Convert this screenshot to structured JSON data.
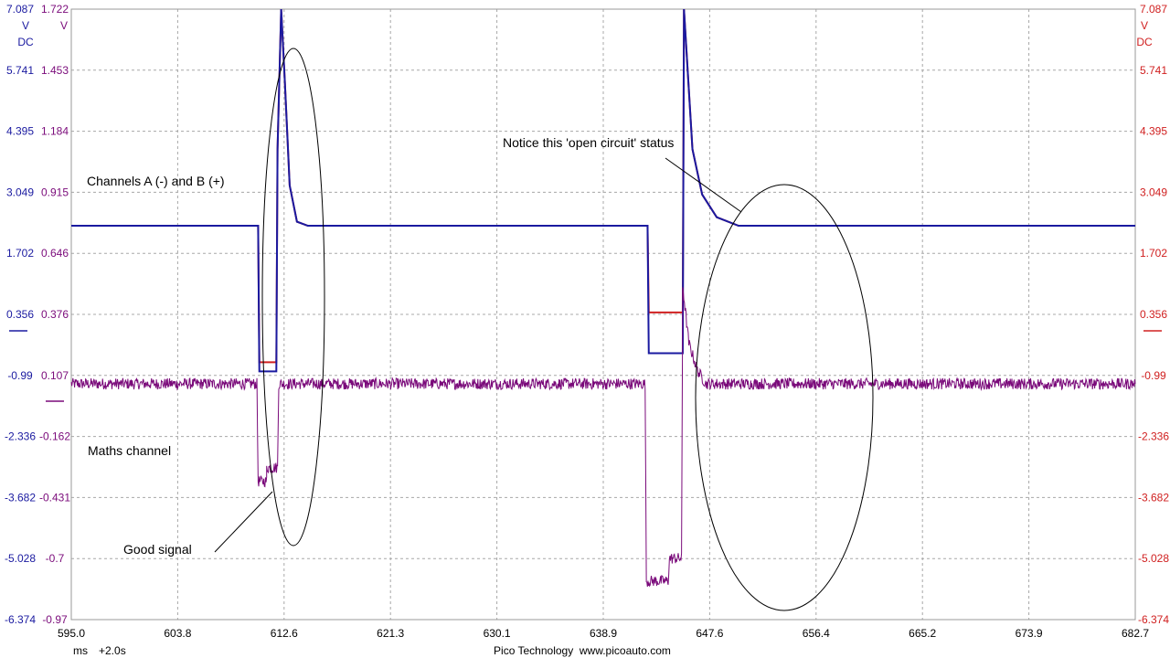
{
  "chart_data": {
    "type": "line",
    "x_axis": {
      "unit": "ms",
      "offset_label": "+2.0s",
      "range": [
        595.0,
        682.7
      ],
      "tick_labels": [
        "595.0",
        "603.8",
        "612.6",
        "621.3",
        "630.1",
        "638.9",
        "647.6",
        "656.4",
        "665.2",
        "673.9",
        "682.7"
      ]
    },
    "axis_left_outer": {
      "unit": "V",
      "coupling": "DC",
      "range": [
        -6.374,
        7.087
      ],
      "color": "#1a1aa0",
      "tick_labels": [
        "7.087",
        "5.741",
        "4.395",
        "3.049",
        "1.702",
        "0.356",
        "-0.99",
        "-2.336",
        "-3.682",
        "-5.028",
        "-6.374"
      ]
    },
    "axis_left_inner": {
      "unit": "V",
      "range": [
        -0.97,
        1.722
      ],
      "color": "#7a0a7a",
      "tick_labels": [
        "1.722",
        "1.453",
        "1.184",
        "0.915",
        "0.646",
        "0.376",
        "0.107",
        "-0.162",
        "-0.431",
        "-0.7",
        "-0.97"
      ]
    },
    "axis_right": {
      "unit": "V",
      "coupling": "DC",
      "range": [
        -6.374,
        7.087
      ],
      "color": "#d02020",
      "tick_labels": [
        "7.087",
        "5.741",
        "4.395",
        "3.049",
        "1.702",
        "0.356",
        "-0.99",
        "-2.336",
        "-3.682",
        "-5.028",
        "-6.374"
      ]
    },
    "grid": true,
    "series": [
      {
        "color": "#d02020",
        "axis": "right",
        "points": [
          [
            595.0,
            2.31
          ],
          [
            610.4,
            2.31
          ],
          [
            610.5,
            -0.7
          ],
          [
            611.9,
            -0.7
          ],
          [
            612.0,
            4.0
          ],
          [
            612.3,
            7.087
          ],
          [
            612.6,
            5.5
          ],
          [
            613.0,
            3.2
          ],
          [
            613.6,
            2.4
          ],
          [
            614.5,
            2.31
          ],
          [
            642.5,
            2.31
          ],
          [
            642.6,
            0.4
          ],
          [
            645.4,
            0.4
          ],
          [
            645.5,
            7.087
          ],
          [
            646.2,
            4.0
          ],
          [
            647.0,
            3.0
          ],
          [
            648.2,
            2.5
          ],
          [
            650.0,
            2.31
          ],
          [
            682.7,
            2.31
          ]
        ]
      },
      {
        "color": "#1a1aa0",
        "axis": "left_outer",
        "points": [
          [
            595.0,
            2.31
          ],
          [
            610.4,
            2.31
          ],
          [
            610.5,
            -0.9
          ],
          [
            611.9,
            -0.9
          ],
          [
            612.0,
            4.0
          ],
          [
            612.3,
            7.087
          ],
          [
            612.6,
            5.5
          ],
          [
            613.0,
            3.2
          ],
          [
            613.6,
            2.4
          ],
          [
            614.5,
            2.31
          ],
          [
            642.5,
            2.31
          ],
          [
            642.6,
            -0.5
          ],
          [
            645.4,
            -0.5
          ],
          [
            645.5,
            7.087
          ],
          [
            646.2,
            4.0
          ],
          [
            647.0,
            3.0
          ],
          [
            648.2,
            2.5
          ],
          [
            650.0,
            2.31
          ],
          [
            682.7,
            2.31
          ]
        ]
      },
      {
        "color": "#7a0a7a",
        "axis": "left_inner",
        "noise": 0.025,
        "points": [
          [
            595.0,
            0.07
          ],
          [
            610.3,
            0.07
          ],
          [
            610.4,
            -0.36
          ],
          [
            611.1,
            -0.36
          ],
          [
            611.1,
            -0.3
          ],
          [
            612.0,
            -0.3
          ],
          [
            612.1,
            0.07
          ],
          [
            642.3,
            0.07
          ],
          [
            642.4,
            -0.8
          ],
          [
            644.2,
            -0.8
          ],
          [
            644.3,
            -0.7
          ],
          [
            645.3,
            -0.7
          ],
          [
            645.4,
            0.5
          ],
          [
            645.9,
            0.25
          ],
          [
            646.6,
            0.13
          ],
          [
            647.3,
            0.07
          ],
          [
            682.7,
            0.07
          ]
        ]
      }
    ],
    "annotations": {
      "channels": "Channels A (-) and B (+)",
      "maths": "Maths channel",
      "good_signal": "Good signal",
      "open_circuit": "Notice this 'open circuit' status"
    }
  },
  "footer": {
    "brand": "Pico Technology  www.picoauto.com"
  }
}
